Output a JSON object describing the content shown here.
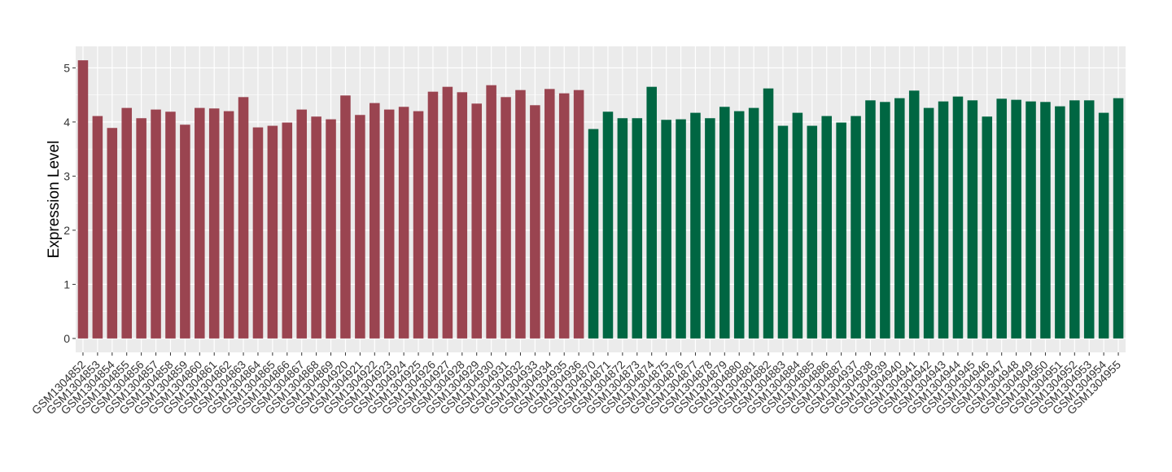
{
  "chart_data": {
    "type": "bar",
    "y_label": "Expression Level",
    "categories": [
      "GSM1304852",
      "GSM1304853",
      "GSM1304854",
      "GSM1304855",
      "GSM1304856",
      "GSM1304857",
      "GSM1304858",
      "GSM1304859",
      "GSM1304860",
      "GSM1304861",
      "GSM1304862",
      "GSM1304863",
      "GSM1304864",
      "GSM1304865",
      "GSM1304866",
      "GSM1304867",
      "GSM1304868",
      "GSM1304869",
      "GSM1304920",
      "GSM1304921",
      "GSM1304922",
      "GSM1304923",
      "GSM1304924",
      "GSM1304925",
      "GSM1304926",
      "GSM1304927",
      "GSM1304928",
      "GSM1304929",
      "GSM1304930",
      "GSM1304931",
      "GSM1304932",
      "GSM1304933",
      "GSM1304934",
      "GSM1304935",
      "GSM1304936",
      "GSM1304870",
      "GSM1304871",
      "GSM1304872",
      "GSM1304873",
      "GSM1304874",
      "GSM1304875",
      "GSM1304876",
      "GSM1304877",
      "GSM1304878",
      "GSM1304879",
      "GSM1304880",
      "GSM1304881",
      "GSM1304882",
      "GSM1304883",
      "GSM1304884",
      "GSM1304885",
      "GSM1304886",
      "GSM1304887",
      "GSM1304937",
      "GSM1304938",
      "GSM1304939",
      "GSM1304940",
      "GSM1304941",
      "GSM1304942",
      "GSM1304943",
      "GSM1304944",
      "GSM1304945",
      "GSM1304946",
      "GSM1304947",
      "GSM1304948",
      "GSM1304949",
      "GSM1304950",
      "GSM1304951",
      "GSM1304952",
      "GSM1304953",
      "GSM1304954",
      "GSM1304955"
    ],
    "values": [
      5.14,
      4.11,
      3.89,
      4.26,
      4.07,
      4.23,
      4.19,
      3.95,
      4.26,
      4.25,
      4.2,
      4.46,
      3.9,
      3.93,
      3.99,
      4.23,
      4.1,
      4.05,
      4.49,
      4.13,
      4.35,
      4.23,
      4.28,
      4.2,
      4.56,
      4.65,
      4.55,
      4.34,
      4.68,
      4.46,
      4.59,
      4.31,
      4.61,
      4.53,
      4.59,
      3.87,
      4.19,
      4.07,
      4.07,
      4.65,
      4.04,
      4.05,
      4.17,
      4.07,
      4.28,
      4.2,
      4.26,
      4.62,
      3.93,
      4.17,
      3.93,
      4.11,
      3.99,
      4.11,
      4.4,
      4.37,
      4.44,
      4.58,
      4.26,
      4.38,
      4.47,
      4.4,
      4.1,
      4.43,
      4.41,
      4.38,
      4.37,
      4.29,
      4.4,
      4.4,
      4.17,
      4.44
    ],
    "colors": [
      "#9a4450",
      "#9a4450",
      "#9a4450",
      "#9a4450",
      "#9a4450",
      "#9a4450",
      "#9a4450",
      "#9a4450",
      "#9a4450",
      "#9a4450",
      "#9a4450",
      "#9a4450",
      "#9a4450",
      "#9a4450",
      "#9a4450",
      "#9a4450",
      "#9a4450",
      "#9a4450",
      "#9a4450",
      "#9a4450",
      "#9a4450",
      "#9a4450",
      "#9a4450",
      "#9a4450",
      "#9a4450",
      "#9a4450",
      "#9a4450",
      "#9a4450",
      "#9a4450",
      "#9a4450",
      "#9a4450",
      "#9a4450",
      "#9a4450",
      "#9a4450",
      "#9a4450",
      "#006642",
      "#006642",
      "#006642",
      "#006642",
      "#006642",
      "#006642",
      "#006642",
      "#006642",
      "#006642",
      "#006642",
      "#006642",
      "#006642",
      "#006642",
      "#006642",
      "#006642",
      "#006642",
      "#006642",
      "#006642",
      "#006642",
      "#006642",
      "#006642",
      "#006642",
      "#006642",
      "#006642",
      "#006642",
      "#006642",
      "#006642",
      "#006642",
      "#006642",
      "#006642",
      "#006642",
      "#006642",
      "#006642",
      "#006642",
      "#006642",
      "#006642",
      "#006642"
    ],
    "ylim": [
      -0.257,
      5.397
    ],
    "yticks": [
      0,
      1,
      2,
      3,
      4,
      5
    ],
    "grid": true
  }
}
